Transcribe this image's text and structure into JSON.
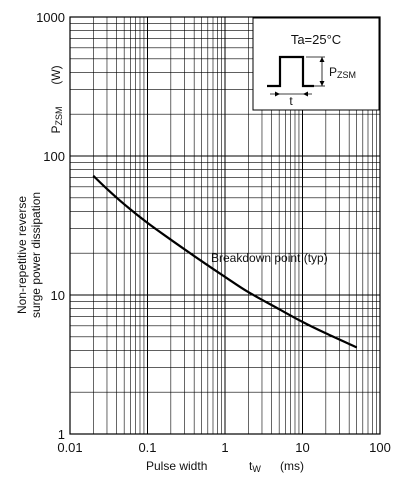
{
  "chart_data": {
    "type": "line",
    "x_scale": "log",
    "y_scale": "log",
    "xlim": [
      0.01,
      100
    ],
    "ylim": [
      1,
      1000
    ],
    "grid": true,
    "x_ticks": [
      "0.01",
      "0.1",
      "1",
      "10",
      "100"
    ],
    "y_ticks": [
      "1",
      "10",
      "100",
      "1000"
    ],
    "xlabel": "Pulse width",
    "xlabel_symbol": "tW",
    "xlabel_unit": "(ms)",
    "ylabel_symbol": "PZSM",
    "ylabel_unit": "(W)",
    "ylabel_line1": "Non-repetitive reverse",
    "ylabel_line2": "surge power dissipation",
    "annotation": "Breakdown point (typ)",
    "inset": {
      "condition": "Ta=25°C",
      "amplitude_label": "PZSM",
      "width_label": "t"
    },
    "series": [
      {
        "x": [
          0.02,
          0.03,
          0.05,
          0.1,
          0.2,
          0.5,
          1,
          2,
          5,
          10,
          20,
          50
        ],
        "y": [
          72,
          58,
          45,
          33,
          25,
          17.5,
          13.5,
          10.5,
          7.9,
          6.4,
          5.3,
          4.2
        ]
      }
    ],
    "colors": {
      "line": "#000000",
      "grid": "#000000",
      "background": "#ffffff"
    }
  }
}
